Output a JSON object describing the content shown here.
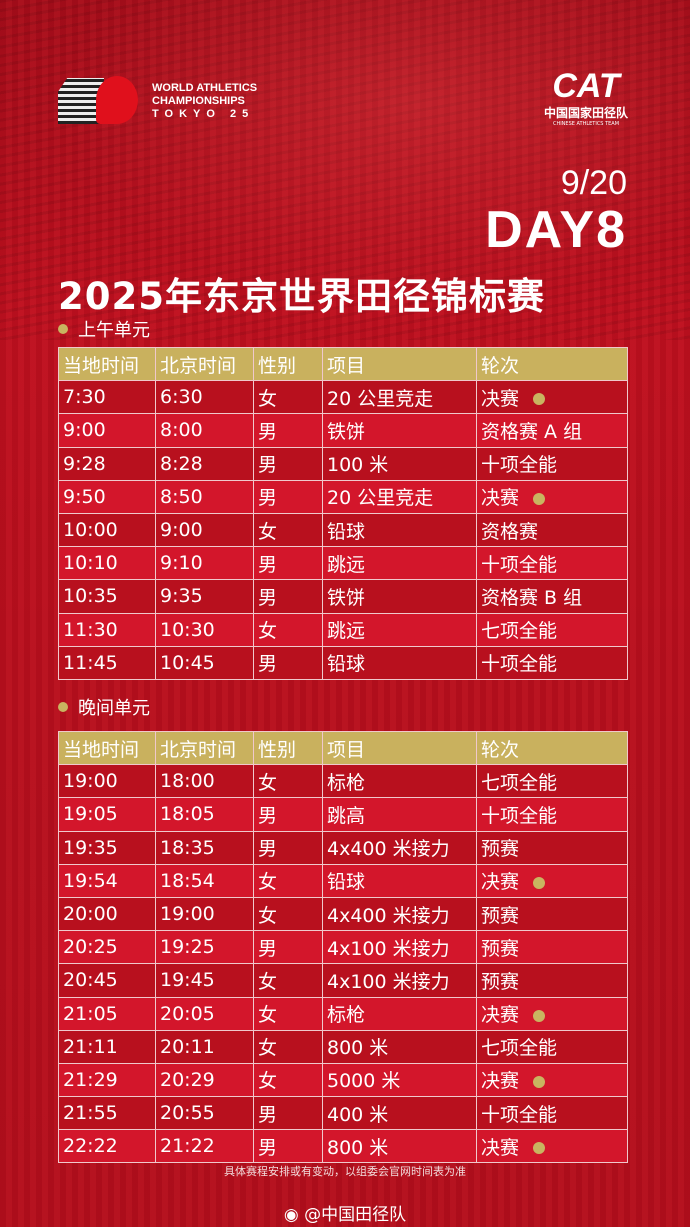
{
  "header": {
    "wa_logo": [
      "WORLD ATHLETICS",
      "CHAMPIONSHIPS",
      "TOKYO 25"
    ],
    "cat_logo": "CAT",
    "cat_cn": "中国国家田径队",
    "cat_en": "CHINESE ATHLETICS TEAM",
    "date": "9/20",
    "day": "DAY8",
    "title": "2025年东京世界田径锦标赛"
  },
  "columns": [
    "当地时间",
    "北京时间",
    "性别",
    "项目",
    "轮次"
  ],
  "colors": {
    "header_gold": "#c9b15e",
    "final_marker": "#c9b460",
    "row_dark": "#b8101e",
    "row_light": "#d3162b"
  },
  "morning": {
    "label": "上午单元",
    "rows": [
      [
        "7:30",
        "6:30",
        "女",
        "20 公里竞走",
        "决赛",
        true
      ],
      [
        "9:00",
        "8:00",
        "男",
        "铁饼",
        "资格赛 A 组",
        false
      ],
      [
        "9:28",
        "8:28",
        "男",
        "100 米",
        "十项全能",
        false
      ],
      [
        "9:50",
        "8:50",
        "男",
        "20 公里竞走",
        "决赛",
        true
      ],
      [
        "10:00",
        "9:00",
        "女",
        "铅球",
        "资格赛",
        false
      ],
      [
        "10:10",
        "9:10",
        "男",
        "跳远",
        "十项全能",
        false
      ],
      [
        "10:35",
        "9:35",
        "男",
        "铁饼",
        "资格赛 B 组",
        false
      ],
      [
        "11:30",
        "10:30",
        "女",
        "跳远",
        "七项全能",
        false
      ],
      [
        "11:45",
        "10:45",
        "男",
        "铅球",
        "十项全能",
        false
      ]
    ]
  },
  "evening": {
    "label": "晚间单元",
    "rows": [
      [
        "19:00",
        "18:00",
        "女",
        "标枪",
        "七项全能",
        false
      ],
      [
        "19:05",
        "18:05",
        "男",
        "跳高",
        "十项全能",
        false
      ],
      [
        "19:35",
        "18:35",
        "男",
        "4x400 米接力",
        "预赛",
        false
      ],
      [
        "19:54",
        "18:54",
        "女",
        "铅球",
        "决赛",
        true
      ],
      [
        "20:00",
        "19:00",
        "女",
        "4x400 米接力",
        "预赛",
        false
      ],
      [
        "20:25",
        "19:25",
        "男",
        "4x100 米接力",
        "预赛",
        false
      ],
      [
        "20:45",
        "19:45",
        "女",
        "4x100 米接力",
        "预赛",
        false
      ],
      [
        "21:05",
        "20:05",
        "女",
        "标枪",
        "决赛",
        true
      ],
      [
        "21:11",
        "20:11",
        "女",
        "800 米",
        "七项全能",
        false
      ],
      [
        "21:29",
        "20:29",
        "女",
        "5000 米",
        "决赛",
        true
      ],
      [
        "21:55",
        "20:55",
        "男",
        "400 米",
        "十项全能",
        false
      ],
      [
        "22:22",
        "21:22",
        "男",
        "800 米",
        "决赛",
        true
      ]
    ]
  },
  "footer": {
    "note": "具体赛程安排或有变动，以组委会官网时间表为准",
    "weibo_icon": "weibo-icon",
    "weibo": "@中国田径队"
  }
}
